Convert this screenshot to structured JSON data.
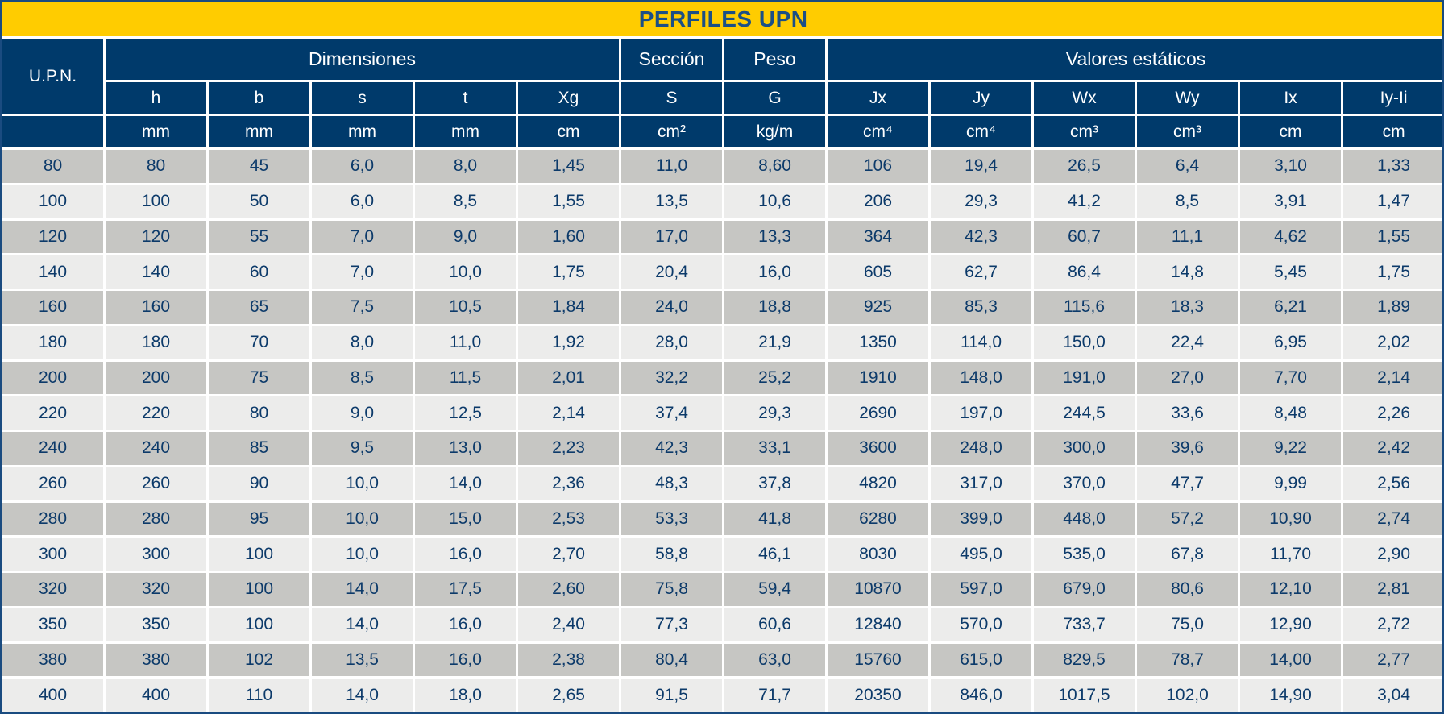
{
  "title": "PERFILES UPN",
  "headers": {
    "row_label": "U.P.N.",
    "groups": {
      "dimensiones": "Dimensiones",
      "seccion": "Sección",
      "peso": "Peso",
      "valores": "Valores estáticos"
    },
    "symbols": [
      "h",
      "b",
      "s",
      "t",
      "Xg",
      "S",
      "G",
      "Jx",
      "Jy",
      "Wx",
      "Wy",
      "Ix",
      "Iy-Ii"
    ],
    "units": [
      "mm",
      "mm",
      "mm",
      "mm",
      "cm",
      "cm²",
      "kg/m",
      "cm⁴",
      "cm⁴",
      "cm³",
      "cm³",
      "cm",
      "cm"
    ]
  },
  "rows": [
    [
      "80",
      "80",
      "45",
      "6,0",
      "8,0",
      "1,45",
      "11,0",
      "8,60",
      "106",
      "19,4",
      "26,5",
      "6,4",
      "3,10",
      "1,33"
    ],
    [
      "100",
      "100",
      "50",
      "6,0",
      "8,5",
      "1,55",
      "13,5",
      "10,6",
      "206",
      "29,3",
      "41,2",
      "8,5",
      "3,91",
      "1,47"
    ],
    [
      "120",
      "120",
      "55",
      "7,0",
      "9,0",
      "1,60",
      "17,0",
      "13,3",
      "364",
      "42,3",
      "60,7",
      "11,1",
      "4,62",
      "1,55"
    ],
    [
      "140",
      "140",
      "60",
      "7,0",
      "10,0",
      "1,75",
      "20,4",
      "16,0",
      "605",
      "62,7",
      "86,4",
      "14,8",
      "5,45",
      "1,75"
    ],
    [
      "160",
      "160",
      "65",
      "7,5",
      "10,5",
      "1,84",
      "24,0",
      "18,8",
      "925",
      "85,3",
      "115,6",
      "18,3",
      "6,21",
      "1,89"
    ],
    [
      "180",
      "180",
      "70",
      "8,0",
      "11,0",
      "1,92",
      "28,0",
      "21,9",
      "1350",
      "114,0",
      "150,0",
      "22,4",
      "6,95",
      "2,02"
    ],
    [
      "200",
      "200",
      "75",
      "8,5",
      "11,5",
      "2,01",
      "32,2",
      "25,2",
      "1910",
      "148,0",
      "191,0",
      "27,0",
      "7,70",
      "2,14"
    ],
    [
      "220",
      "220",
      "80",
      "9,0",
      "12,5",
      "2,14",
      "37,4",
      "29,3",
      "2690",
      "197,0",
      "244,5",
      "33,6",
      "8,48",
      "2,26"
    ],
    [
      "240",
      "240",
      "85",
      "9,5",
      "13,0",
      "2,23",
      "42,3",
      "33,1",
      "3600",
      "248,0",
      "300,0",
      "39,6",
      "9,22",
      "2,42"
    ],
    [
      "260",
      "260",
      "90",
      "10,0",
      "14,0",
      "2,36",
      "48,3",
      "37,8",
      "4820",
      "317,0",
      "370,0",
      "47,7",
      "9,99",
      "2,56"
    ],
    [
      "280",
      "280",
      "95",
      "10,0",
      "15,0",
      "2,53",
      "53,3",
      "41,8",
      "6280",
      "399,0",
      "448,0",
      "57,2",
      "10,90",
      "2,74"
    ],
    [
      "300",
      "300",
      "100",
      "10,0",
      "16,0",
      "2,70",
      "58,8",
      "46,1",
      "8030",
      "495,0",
      "535,0",
      "67,8",
      "11,70",
      "2,90"
    ],
    [
      "320",
      "320",
      "100",
      "14,0",
      "17,5",
      "2,60",
      "75,8",
      "59,4",
      "10870",
      "597,0",
      "679,0",
      "80,6",
      "12,10",
      "2,81"
    ],
    [
      "350",
      "350",
      "100",
      "14,0",
      "16,0",
      "2,40",
      "77,3",
      "60,6",
      "12840",
      "570,0",
      "733,7",
      "75,0",
      "12,90",
      "2,72"
    ],
    [
      "380",
      "380",
      "102",
      "13,5",
      "16,0",
      "2,38",
      "80,4",
      "63,0",
      "15760",
      "615,0",
      "829,5",
      "78,7",
      "14,00",
      "2,77"
    ],
    [
      "400",
      "400",
      "110",
      "14,0",
      "18,0",
      "2,65",
      "91,5",
      "71,7",
      "20350",
      "846,0",
      "1017,5",
      "102,0",
      "14,90",
      "3,04"
    ]
  ],
  "colors": {
    "title_bg": "#ffcc00",
    "title_text": "#1b4f86",
    "header_bg": "#003a6b",
    "header_text": "#ffffff",
    "row_dark": "#c6c6c3",
    "row_light": "#ececeb",
    "cell_text": "#0c3a6a"
  }
}
